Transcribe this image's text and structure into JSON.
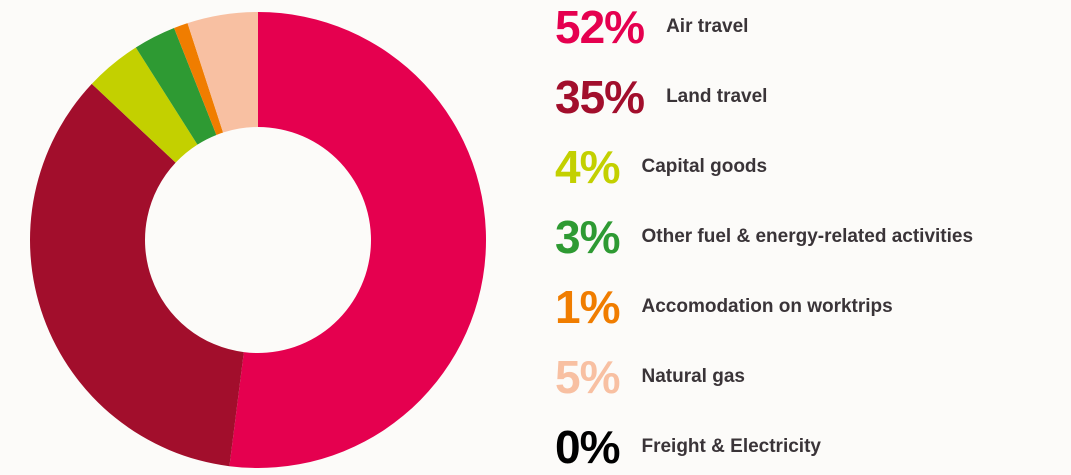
{
  "chart_data": {
    "type": "pie",
    "donut": true,
    "categories": [
      "Air travel",
      "Land travel",
      "Capital goods",
      "Other fuel & energy-related activities",
      "Accomodation on worktrips",
      "Natural gas",
      "Freight & Electricity"
    ],
    "values": [
      52,
      35,
      4,
      3,
      1,
      5,
      0
    ],
    "value_labels": [
      "52%",
      "35%",
      "4%",
      "3%",
      "1%",
      "5%",
      "0%"
    ],
    "colors": [
      "#e5004f",
      "#a20e2c",
      "#c3d000",
      "#2e9a33",
      "#f07d00",
      "#f8c0a2",
      "#000000"
    ]
  }
}
